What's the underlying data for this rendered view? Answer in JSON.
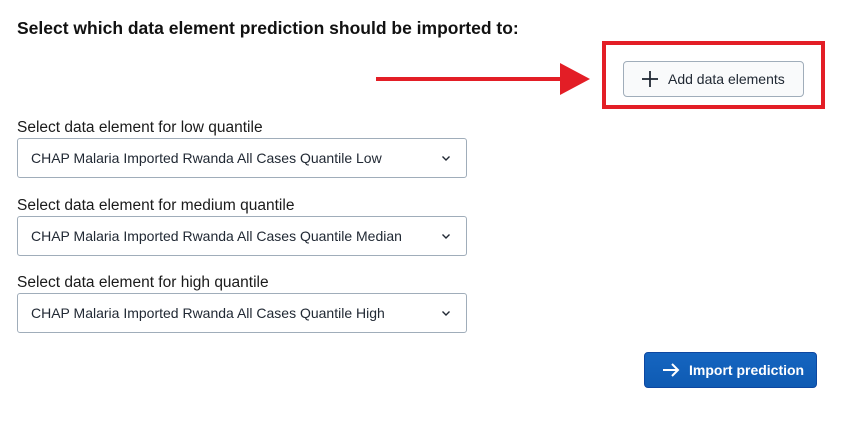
{
  "header": {
    "title": "Select which data element prediction should be imported to:"
  },
  "toolbar": {
    "add_data_elements_label": "Add data elements",
    "add_icon": "plus-icon"
  },
  "annotation": {
    "arrow_color": "#e31e26",
    "highlight_color": "#e31e26"
  },
  "fields": {
    "low": {
      "label": "Select data element for low quantile",
      "selected": "CHAP Malaria Imported Rwanda All Cases Quantile Low"
    },
    "medium": {
      "label": "Select data element for medium quantile",
      "selected": "CHAP Malaria Imported Rwanda All Cases Quantile Median"
    },
    "high": {
      "label": "Select data element for high quantile",
      "selected": "CHAP Malaria Imported Rwanda All Cases Quantile High"
    }
  },
  "actions": {
    "import_label": "Import prediction",
    "import_icon": "arrow-right-icon",
    "primary_color": "#1565c0"
  }
}
